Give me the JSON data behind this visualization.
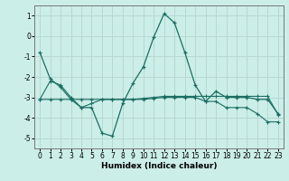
{
  "xlabel": "Humidex (Indice chaleur)",
  "background_color": "#cceee8",
  "grid_color": "#b8d8d2",
  "line_color": "#1a6e64",
  "x_values": [
    0,
    1,
    2,
    3,
    4,
    5,
    6,
    7,
    8,
    9,
    10,
    11,
    12,
    13,
    14,
    15,
    16,
    17,
    18,
    19,
    20,
    21,
    22,
    23
  ],
  "line1_y": [
    -0.8,
    -2.1,
    -2.5,
    -3.1,
    -3.5,
    -3.5,
    -4.75,
    -4.9,
    -3.3,
    -2.3,
    -1.5,
    -0.05,
    1.1,
    0.65,
    -0.8,
    -2.4,
    -3.2,
    -2.7,
    -3.0,
    -3.0,
    -3.0,
    -3.1,
    -3.1,
    -3.8
  ],
  "line2_y": [
    -3.1,
    -3.1,
    -3.1,
    -3.1,
    -3.1,
    -3.1,
    -3.1,
    -3.1,
    -3.1,
    -3.1,
    -3.05,
    -3.0,
    -2.95,
    -2.95,
    -2.95,
    -2.95,
    -2.95,
    -2.95,
    -2.95,
    -2.95,
    -2.95,
    -2.95,
    -2.95,
    -3.85
  ],
  "line3_y": [
    -3.1,
    -2.2,
    -2.4,
    -3.0,
    -3.5,
    -3.3,
    -3.1,
    -3.1,
    -3.1,
    -3.1,
    -3.1,
    -3.05,
    -3.0,
    -3.0,
    -3.0,
    -3.0,
    -3.2,
    -3.2,
    -3.5,
    -3.5,
    -3.5,
    -3.8,
    -4.2,
    -4.2
  ],
  "ylim": [
    -5.5,
    1.5
  ],
  "yticks": [
    -5,
    -4,
    -3,
    -2,
    -1,
    0,
    1
  ],
  "xticks": [
    0,
    1,
    2,
    3,
    4,
    5,
    6,
    7,
    8,
    9,
    10,
    11,
    12,
    13,
    14,
    15,
    16,
    17,
    18,
    19,
    20,
    21,
    22,
    23
  ],
  "tick_fontsize": 5.5,
  "xlabel_fontsize": 6.5
}
